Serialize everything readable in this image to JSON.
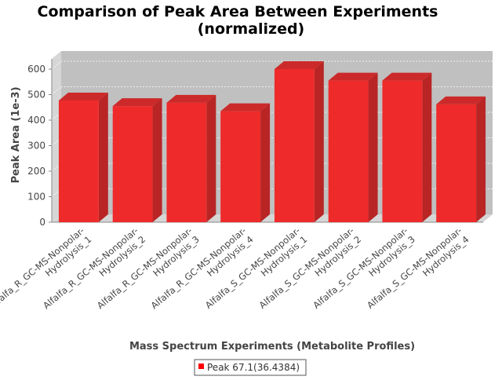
{
  "colors": {
    "bar_front": "#ee2a2a",
    "bar_side": "#b92525",
    "bar_top": "#cc2a2a",
    "plot_back": "#c0c0c0",
    "plot_wall": "#d6d6d6",
    "grid": "#ffffff",
    "legend_swatch": "#ff0000"
  },
  "chart_data": {
    "type": "bar",
    "title_lines": [
      "Comparison of Peak Area Between Experiments",
      "(normalized)"
    ],
    "xlabel": "Mass Spectrum Experiments (Metabolite Profiles)",
    "ylabel": "Peak Area (1e-3)",
    "ylim": [
      0,
      640
    ],
    "yticks": [
      0,
      100,
      200,
      300,
      400,
      500,
      600
    ],
    "grid": true,
    "legend_position": "bottom",
    "categories": [
      [
        "Alfalfa_R_GC-MS-Nonpolar-",
        "Hydrolysis_1"
      ],
      [
        "Alfalfa_R_GC-MS-Nonpolar-",
        "Hydrolysis_2"
      ],
      [
        "Alfalfa_R_GC-MS-Nonpolar-",
        "Hydrolysis_3"
      ],
      [
        "Alfalfa_R_GC-MS-Nonpolar-",
        "Hydrolysis_4"
      ],
      [
        "Alfalfa_S_GC-MS-Nonpolar-",
        "Hydrolysis_1"
      ],
      [
        "Alfalfa_S_GC-MS-Nonpolar-",
        "Hydrolysis_2"
      ],
      [
        "Alfalfa_S_GC-MS-Nonpolar-",
        "Hydrolysis_3"
      ],
      [
        "Alfalfa_S_GC-MS-Nonpolar-",
        "Hydrolysis_4"
      ]
    ],
    "series": [
      {
        "name": "Peak 67.1(36.4384)",
        "values": [
          477,
          455,
          468,
          435,
          600,
          555,
          555,
          462
        ]
      }
    ]
  }
}
